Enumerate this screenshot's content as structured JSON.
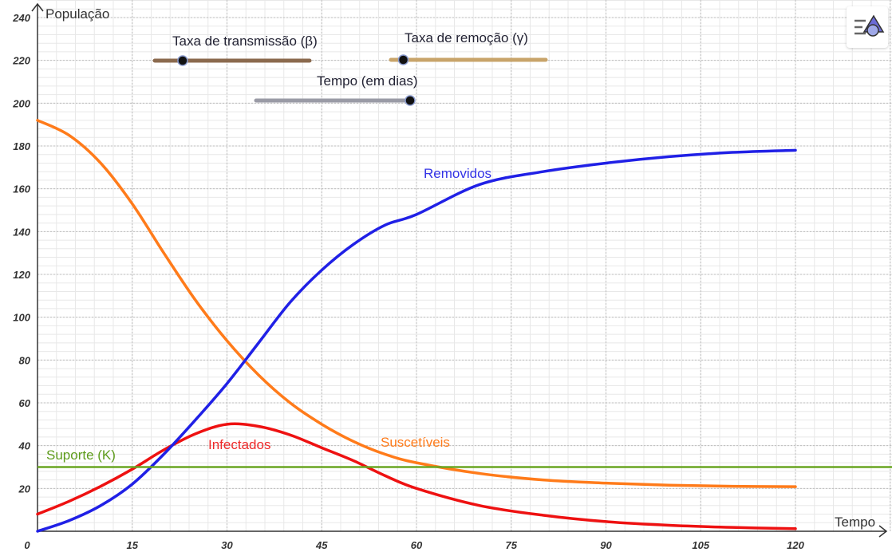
{
  "axes": {
    "x_title": "Tempo",
    "y_title": "População",
    "x_ticks": [
      "0",
      "15",
      "30",
      "45",
      "60",
      "75",
      "90",
      "105",
      "120"
    ],
    "y_ticks": [
      "20",
      "40",
      "60",
      "80",
      "100",
      "120",
      "140",
      "160",
      "180",
      "200",
      "220",
      "240"
    ]
  },
  "sliders": {
    "beta": {
      "label": "Taxa de transmissão (β)",
      "color": "#8b6a4e",
      "value_fraction": 0.18
    },
    "gamma": {
      "label": "Taxa de remoção (γ)",
      "color": "#c8a46a",
      "value_fraction": 0.08
    },
    "time": {
      "label": "Tempo (em dias)",
      "color": "#9a9ba6",
      "value_fraction": 1.0
    }
  },
  "labels": {
    "removidos": "Removidos",
    "infectados": "Infectados",
    "suscetiveis": "Suscetíveis",
    "suporte": "Suporte (K)"
  },
  "toolbar": {
    "graphics_icon": "graphics-view-icon"
  },
  "colors": {
    "susceptible": "#ff7b1a",
    "infected": "#ee1111",
    "removed": "#2020e6",
    "support": "#6aa622",
    "label_removed": "#3333e6",
    "label_infected": "#ee2a2a",
    "label_susceptible": "#ff7b1a",
    "label_support": "#5e9c1c"
  },
  "chart_data": {
    "type": "line",
    "xlim": [
      0,
      120
    ],
    "ylim": [
      0,
      240
    ],
    "xlabel": "Tempo",
    "ylabel": "População",
    "grid": true,
    "series": [
      {
        "name": "Suscetíveis",
        "x": [
          0,
          5,
          10,
          15,
          20,
          25,
          30,
          35,
          40,
          45,
          50,
          55,
          60,
          70,
          80,
          90,
          100,
          110,
          120
        ],
        "y": [
          192,
          185,
          172,
          153,
          130,
          108,
          89,
          73,
          60,
          50,
          42,
          36,
          32,
          27,
          24,
          22.5,
          21.5,
          21,
          20.8
        ]
      },
      {
        "name": "Infectados",
        "x": [
          0,
          5,
          10,
          15,
          20,
          25,
          30,
          35,
          40,
          45,
          50,
          55,
          60,
          70,
          80,
          90,
          100,
          110,
          120
        ],
        "y": [
          8,
          14,
          21,
          29,
          38,
          45.5,
          50,
          49,
          45,
          39,
          33,
          26,
          20,
          12,
          7.5,
          4.5,
          2.8,
          1.8,
          1.2
        ]
      },
      {
        "name": "Removidos",
        "x": [
          0,
          5,
          10,
          15,
          20,
          25,
          30,
          35,
          40,
          45,
          50,
          55,
          60,
          70,
          80,
          90,
          100,
          110,
          120
        ],
        "y": [
          0,
          5,
          12,
          22,
          36,
          52,
          69,
          88,
          107,
          122,
          134,
          143,
          148,
          162,
          168,
          172,
          175,
          177,
          178
        ]
      },
      {
        "name": "Suporte (K)",
        "x": [
          0,
          120
        ],
        "y": [
          30,
          30
        ]
      }
    ]
  }
}
